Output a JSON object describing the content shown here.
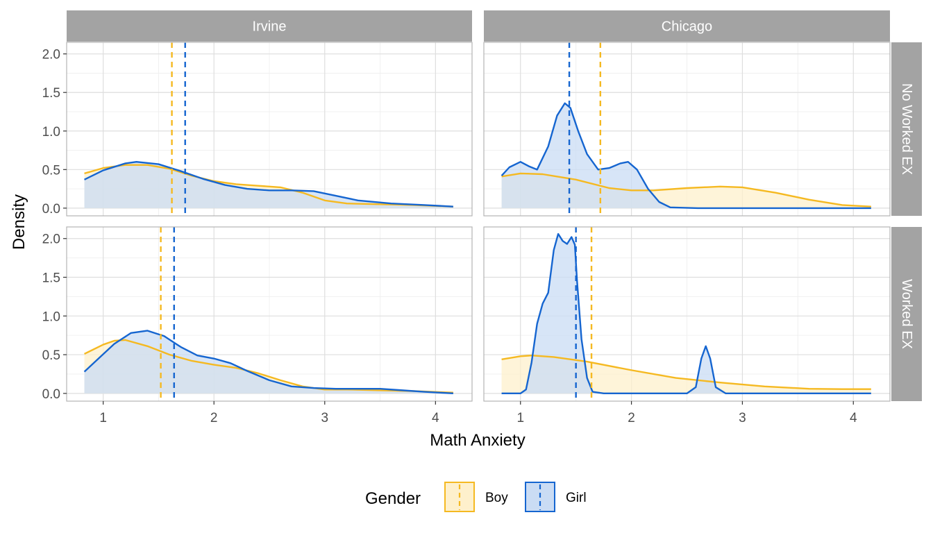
{
  "chart_data": {
    "type": "area",
    "xlabel": "Math Anxiety",
    "ylabel": "Density",
    "xlim": [
      0.67,
      4.33
    ],
    "ylim": [
      -0.1,
      2.15
    ],
    "x_ticks": [
      "1",
      "2",
      "3",
      "4"
    ],
    "y_ticks": [
      "0.0",
      "0.5",
      "1.0",
      "1.5",
      "2.0"
    ],
    "x_tick_values": [
      1,
      2,
      3,
      4
    ],
    "y_tick_values": [
      0,
      0.5,
      1.0,
      1.5,
      2.0
    ],
    "grid": true,
    "col_facets": [
      "Irvine",
      "Chicago"
    ],
    "row_facets": [
      "No Worked EX",
      "Worked EX"
    ],
    "legend": {
      "title": "Gender",
      "position": "bottom",
      "items": [
        {
          "label": "Boy",
          "color": "#f5b921",
          "fill": "#fef0cc"
        },
        {
          "label": "Girl",
          "color": "#1565d0",
          "fill": "#cadcf4"
        }
      ]
    },
    "panels": [
      {
        "col": "Irvine",
        "row": "No Worked EX",
        "series": [
          {
            "name": "Boy",
            "mean": 1.62,
            "points": [
              [
                0.83,
                0.45
              ],
              [
                1.0,
                0.52
              ],
              [
                1.2,
                0.56
              ],
              [
                1.4,
                0.56
              ],
              [
                1.6,
                0.51
              ],
              [
                1.8,
                0.42
              ],
              [
                2.0,
                0.35
              ],
              [
                2.2,
                0.31
              ],
              [
                2.4,
                0.29
              ],
              [
                2.6,
                0.27
              ],
              [
                2.8,
                0.2
              ],
              [
                3.0,
                0.1
              ],
              [
                3.2,
                0.06
              ],
              [
                3.5,
                0.05
              ],
              [
                3.8,
                0.04
              ],
              [
                4.16,
                0.02
              ]
            ]
          },
          {
            "name": "Girl",
            "mean": 1.74,
            "points": [
              [
                0.83,
                0.37
              ],
              [
                1.0,
                0.49
              ],
              [
                1.2,
                0.58
              ],
              [
                1.3,
                0.6
              ],
              [
                1.5,
                0.57
              ],
              [
                1.7,
                0.48
              ],
              [
                1.9,
                0.38
              ],
              [
                2.1,
                0.3
              ],
              [
                2.3,
                0.25
              ],
              [
                2.5,
                0.23
              ],
              [
                2.7,
                0.23
              ],
              [
                2.9,
                0.22
              ],
              [
                3.1,
                0.16
              ],
              [
                3.3,
                0.1
              ],
              [
                3.6,
                0.06
              ],
              [
                3.9,
                0.04
              ],
              [
                4.16,
                0.02
              ]
            ]
          }
        ]
      },
      {
        "col": "Chicago",
        "row": "No Worked EX",
        "series": [
          {
            "name": "Boy",
            "mean": 1.72,
            "points": [
              [
                0.83,
                0.41
              ],
              [
                1.0,
                0.45
              ],
              [
                1.2,
                0.44
              ],
              [
                1.5,
                0.37
              ],
              [
                1.8,
                0.26
              ],
              [
                2.0,
                0.23
              ],
              [
                2.2,
                0.23
              ],
              [
                2.5,
                0.26
              ],
              [
                2.8,
                0.28
              ],
              [
                3.0,
                0.27
              ],
              [
                3.3,
                0.2
              ],
              [
                3.6,
                0.11
              ],
              [
                3.9,
                0.04
              ],
              [
                4.16,
                0.02
              ]
            ]
          },
          {
            "name": "Girl",
            "mean": 1.44,
            "points": [
              [
                0.83,
                0.42
              ],
              [
                0.9,
                0.53
              ],
              [
                1.0,
                0.6
              ],
              [
                1.08,
                0.54
              ],
              [
                1.15,
                0.5
              ],
              [
                1.25,
                0.8
              ],
              [
                1.33,
                1.2
              ],
              [
                1.4,
                1.36
              ],
              [
                1.45,
                1.3
              ],
              [
                1.52,
                1.0
              ],
              [
                1.6,
                0.7
              ],
              [
                1.7,
                0.5
              ],
              [
                1.8,
                0.52
              ],
              [
                1.9,
                0.58
              ],
              [
                1.97,
                0.6
              ],
              [
                2.05,
                0.5
              ],
              [
                2.15,
                0.25
              ],
              [
                2.25,
                0.08
              ],
              [
                2.35,
                0.01
              ],
              [
                2.6,
                0.0
              ],
              [
                3.0,
                0.0
              ],
              [
                3.5,
                0.0
              ],
              [
                4.16,
                0.0
              ]
            ]
          }
        ]
      },
      {
        "col": "Irvine",
        "row": "Worked EX",
        "series": [
          {
            "name": "Boy",
            "mean": 1.52,
            "points": [
              [
                0.83,
                0.51
              ],
              [
                1.0,
                0.63
              ],
              [
                1.1,
                0.68
              ],
              [
                1.2,
                0.69
              ],
              [
                1.4,
                0.61
              ],
              [
                1.6,
                0.5
              ],
              [
                1.8,
                0.42
              ],
              [
                2.0,
                0.37
              ],
              [
                2.2,
                0.33
              ],
              [
                2.4,
                0.26
              ],
              [
                2.6,
                0.17
              ],
              [
                2.8,
                0.09
              ],
              [
                3.0,
                0.05
              ],
              [
                3.2,
                0.05
              ],
              [
                3.5,
                0.04
              ],
              [
                3.8,
                0.03
              ],
              [
                4.16,
                0.01
              ]
            ]
          },
          {
            "name": "Girl",
            "mean": 1.64,
            "points": [
              [
                0.83,
                0.28
              ],
              [
                0.95,
                0.44
              ],
              [
                1.1,
                0.64
              ],
              [
                1.25,
                0.78
              ],
              [
                1.4,
                0.81
              ],
              [
                1.55,
                0.74
              ],
              [
                1.7,
                0.6
              ],
              [
                1.85,
                0.49
              ],
              [
                2.0,
                0.45
              ],
              [
                2.15,
                0.39
              ],
              [
                2.3,
                0.29
              ],
              [
                2.5,
                0.17
              ],
              [
                2.7,
                0.09
              ],
              [
                2.9,
                0.07
              ],
              [
                3.1,
                0.06
              ],
              [
                3.3,
                0.06
              ],
              [
                3.5,
                0.06
              ],
              [
                3.7,
                0.04
              ],
              [
                3.9,
                0.02
              ],
              [
                4.16,
                0.0
              ]
            ]
          }
        ]
      },
      {
        "col": "Chicago",
        "row": "Worked EX",
        "series": [
          {
            "name": "Boy",
            "mean": 1.64,
            "points": [
              [
                0.83,
                0.44
              ],
              [
                1.0,
                0.48
              ],
              [
                1.1,
                0.49
              ],
              [
                1.3,
                0.47
              ],
              [
                1.6,
                0.41
              ],
              [
                2.0,
                0.3
              ],
              [
                2.4,
                0.2
              ],
              [
                2.8,
                0.14
              ],
              [
                3.2,
                0.09
              ],
              [
                3.6,
                0.06
              ],
              [
                3.9,
                0.055
              ],
              [
                4.16,
                0.055
              ]
            ]
          },
          {
            "name": "Girl",
            "mean": 1.5,
            "points": [
              [
                0.83,
                0.0
              ],
              [
                1.0,
                0.0
              ],
              [
                1.05,
                0.05
              ],
              [
                1.1,
                0.4
              ],
              [
                1.15,
                0.9
              ],
              [
                1.2,
                1.16
              ],
              [
                1.25,
                1.3
              ],
              [
                1.3,
                1.85
              ],
              [
                1.34,
                2.06
              ],
              [
                1.38,
                1.97
              ],
              [
                1.42,
                1.93
              ],
              [
                1.46,
                2.02
              ],
              [
                1.49,
                1.92
              ],
              [
                1.51,
                1.45
              ],
              [
                1.55,
                0.7
              ],
              [
                1.6,
                0.2
              ],
              [
                1.65,
                0.02
              ],
              [
                1.75,
                0.0
              ],
              [
                2.0,
                0.0
              ],
              [
                2.5,
                0.0
              ],
              [
                2.58,
                0.08
              ],
              [
                2.63,
                0.45
              ],
              [
                2.67,
                0.61
              ],
              [
                2.71,
                0.45
              ],
              [
                2.76,
                0.08
              ],
              [
                2.85,
                0.0
              ],
              [
                3.2,
                0.0
              ],
              [
                3.8,
                0.0
              ],
              [
                4.16,
                0.0
              ]
            ]
          }
        ]
      }
    ]
  }
}
